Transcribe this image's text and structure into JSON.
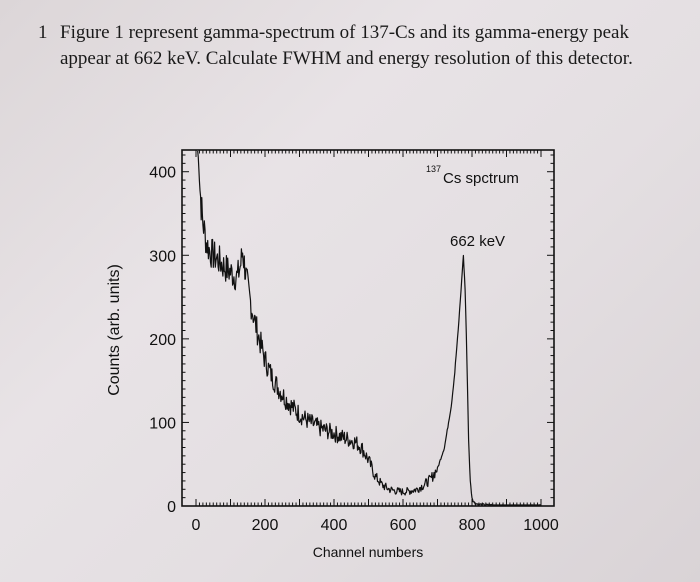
{
  "question": {
    "number": "1",
    "text": "Figure 1 represent gamma-spectrum of 137-Cs and its gamma-energy peak appear at 662 keV. Calculate FWHM and energy resolution of this detector."
  },
  "chart_data": {
    "type": "line",
    "title_sup": "137",
    "title_main": "Cs spctrum",
    "annotation": "662 keV",
    "xlabel": "Channel numbers",
    "ylabel": "Counts (arb. units)",
    "xlim": [
      0,
      1000
    ],
    "ylim": [
      0,
      420
    ],
    "xticks": [
      "0",
      "200",
      "400",
      "600",
      "800",
      "1000"
    ],
    "yticks": [
      "0",
      "100",
      "200",
      "300",
      "400"
    ],
    "series": [
      {
        "x": [
          5,
          10,
          15,
          20,
          30,
          40,
          50,
          60,
          70,
          80,
          90,
          100,
          110,
          120,
          130,
          135,
          140,
          145,
          150,
          160,
          170,
          180,
          190,
          200,
          220,
          240,
          260,
          280,
          300,
          320,
          340,
          360,
          380,
          400,
          420,
          440,
          460,
          480,
          500,
          520,
          540,
          560,
          580,
          600,
          620,
          640,
          660,
          680,
          700,
          720,
          740,
          750,
          760,
          770,
          775,
          780,
          785,
          790,
          795,
          800,
          805,
          810,
          820,
          840,
          860,
          880,
          900,
          950,
          1000
        ],
        "y": [
          430,
          390,
          360,
          340,
          315,
          305,
          300,
          296,
          292,
          287,
          283,
          280,
          276,
          274,
          290,
          305,
          290,
          275,
          262,
          240,
          222,
          205,
          190,
          175,
          155,
          140,
          128,
          118,
          110,
          103,
          98,
          93,
          90,
          87,
          83,
          80,
          77,
          70,
          55,
          35,
          25,
          20,
          18,
          17,
          18,
          20,
          25,
          32,
          45,
          70,
          120,
          160,
          210,
          270,
          300,
          260,
          180,
          80,
          30,
          10,
          5,
          3,
          2,
          1,
          1,
          0,
          0,
          0,
          0
        ]
      }
    ]
  }
}
